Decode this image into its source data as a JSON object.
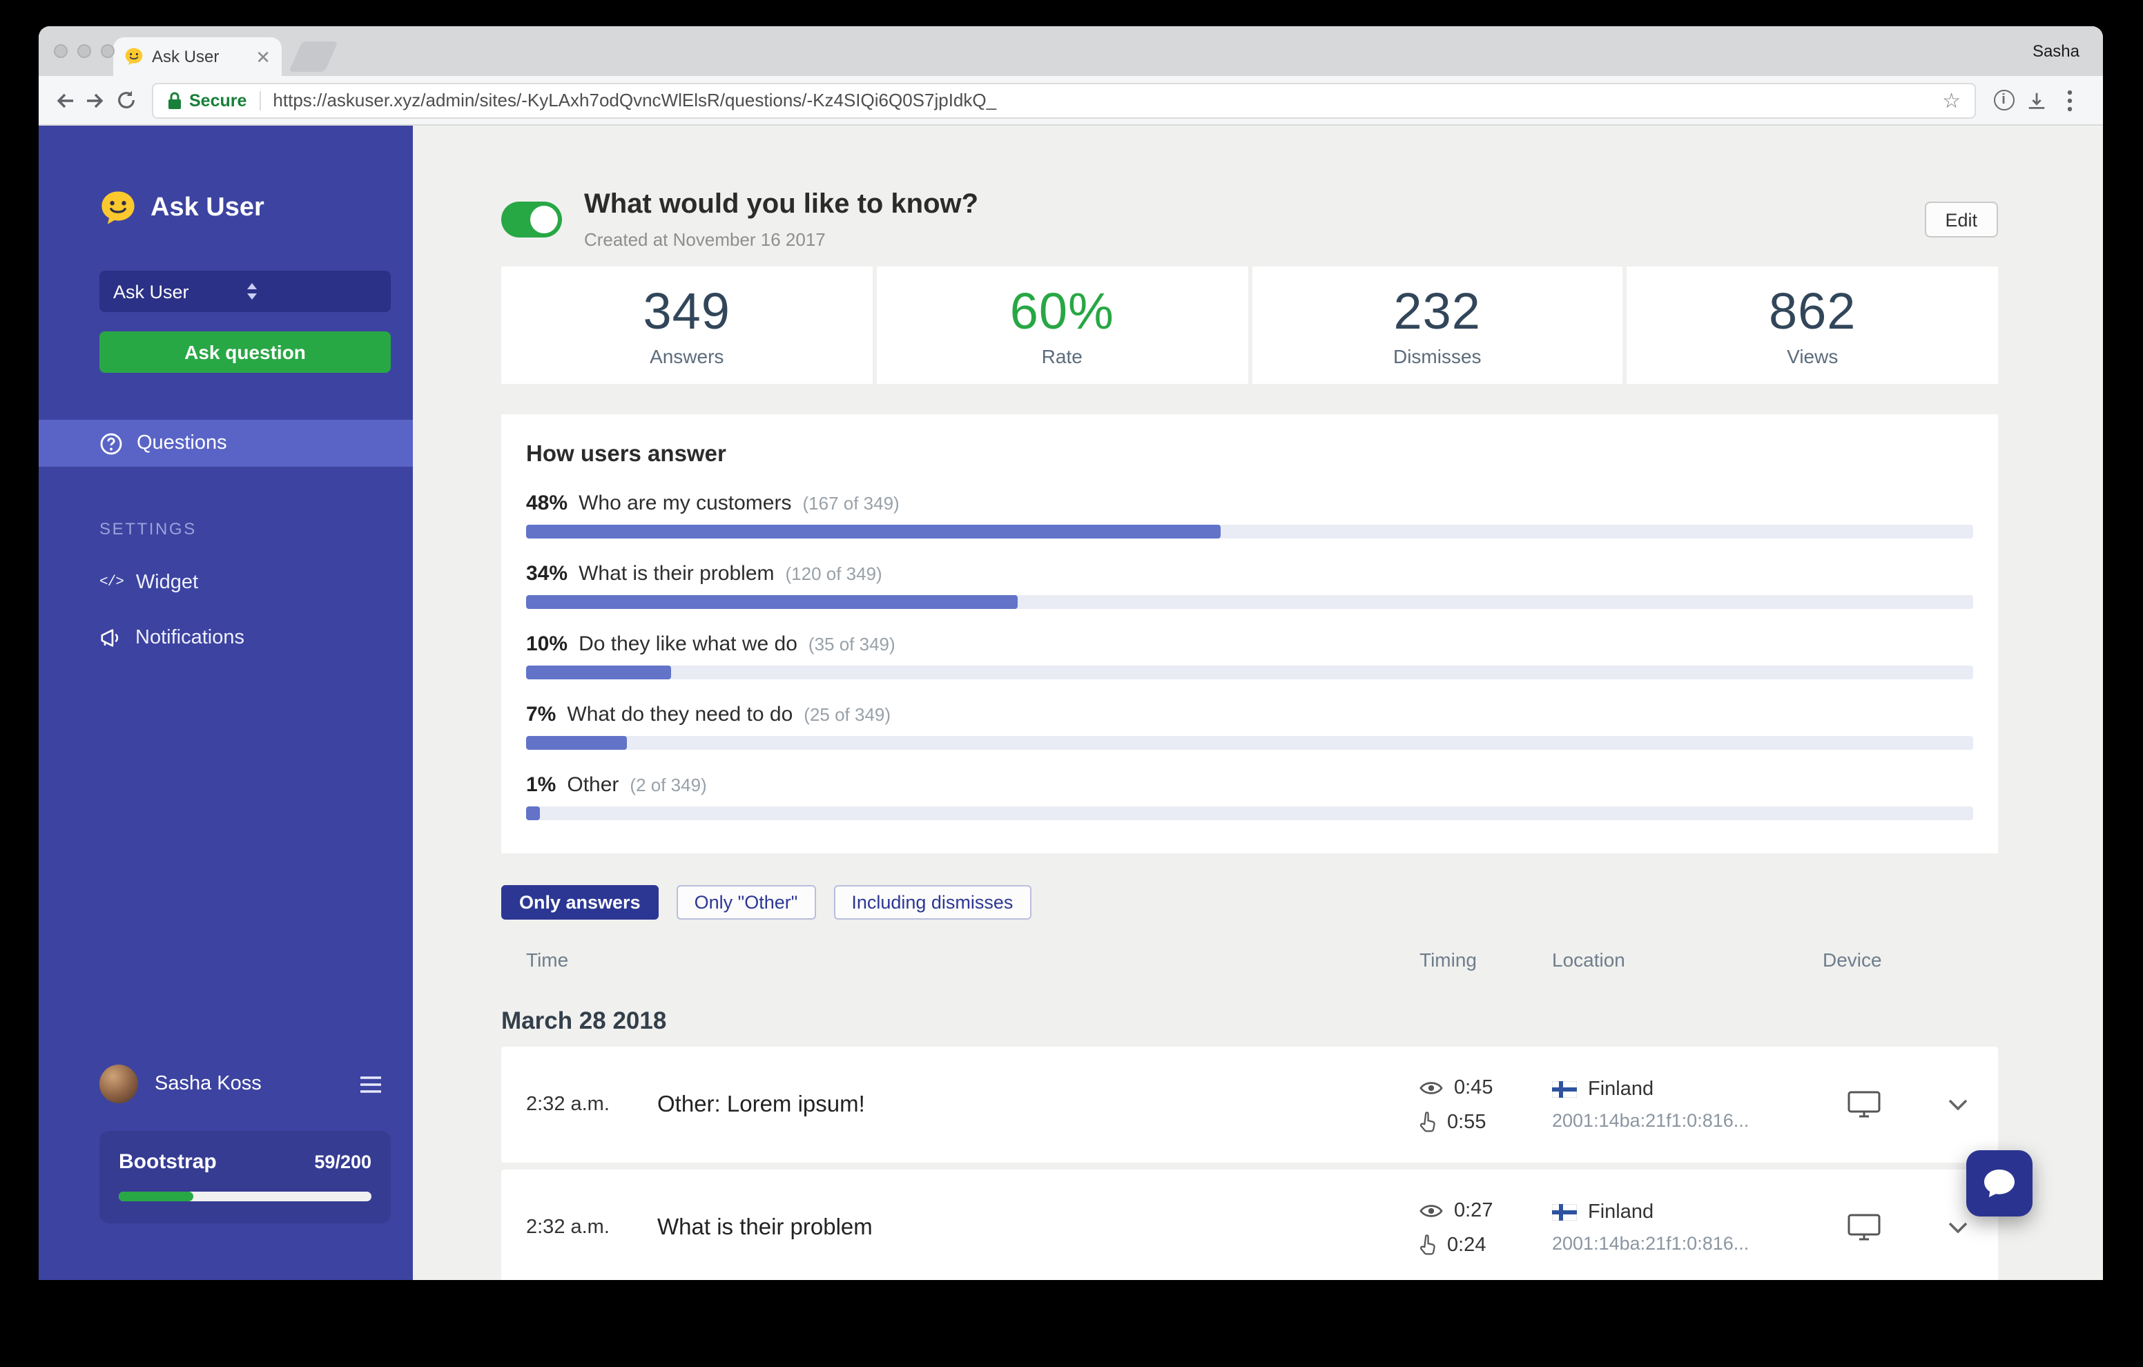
{
  "browser": {
    "profile_name": "Sasha",
    "tab_title": "Ask User",
    "secure_label": "Secure",
    "url": "https://askuser.xyz/admin/sites/-KyLAxh7odQvncWlElsR/questions/-Kz4SIQi6Q0S7jpIdkQ_"
  },
  "sidebar": {
    "app_name": "Ask User",
    "site_selector_value": "Ask User",
    "ask_question_label": "Ask question",
    "questions_label": "Questions",
    "settings_heading": "SETTINGS",
    "widget_label": "Widget",
    "notifications_label": "Notifications",
    "user_name": "Sasha Koss",
    "plan_name": "Bootstrap",
    "plan_usage": "59/200",
    "plan_progress_pct": 29.5
  },
  "question": {
    "title": "What would you like to know?",
    "created": "Created at November 16 2017",
    "edit_label": "Edit",
    "enabled": true
  },
  "stats": [
    {
      "value": "349",
      "label": "Answers"
    },
    {
      "value": "60%",
      "label": "Rate"
    },
    {
      "value": "232",
      "label": "Dismisses"
    },
    {
      "value": "862",
      "label": "Views"
    }
  ],
  "chart": {
    "type": "bar",
    "title": "How users answer",
    "rows": [
      {
        "pct": "48%",
        "label": "Who are my customers",
        "count": "(167 of 349)",
        "value": 48
      },
      {
        "pct": "34%",
        "label": "What is their problem",
        "count": "(120 of 349)",
        "value": 34
      },
      {
        "pct": "10%",
        "label": "Do they like what we do",
        "count": "(35 of 349)",
        "value": 10
      },
      {
        "pct": "7%",
        "label": "What do they need to do",
        "count": "(25 of 349)",
        "value": 7
      },
      {
        "pct": "1%",
        "label": "Other",
        "count": "(2 of 349)",
        "value": 1
      }
    ]
  },
  "filters": [
    {
      "label": "Only answers",
      "active": true
    },
    {
      "label": "Only \"Other\"",
      "active": false
    },
    {
      "label": "Including dismisses",
      "active": false
    }
  ],
  "table": {
    "headers": {
      "time": "Time",
      "timing": "Timing",
      "location": "Location",
      "device": "Device"
    },
    "date_group": "March 28 2018",
    "rows": [
      {
        "time": "2:32 a.m.",
        "answer": "Other: Lorem ipsum!",
        "view_duration": "0:45",
        "click_duration": "0:55",
        "country": "Finland",
        "ip": "2001:14ba:21f1:0:816...",
        "device": "desktop"
      },
      {
        "time": "2:32 a.m.",
        "answer": "What is their problem",
        "view_duration": "0:27",
        "click_duration": "0:24",
        "country": "Finland",
        "ip": "2001:14ba:21f1:0:816...",
        "device": "desktop"
      }
    ]
  },
  "colors": {
    "sidebar_bg": "#3d43a0",
    "accent_green": "#28a745",
    "bar_fill": "#6273c8",
    "filter_active": "#2c3794",
    "secure_green": "#188038"
  }
}
